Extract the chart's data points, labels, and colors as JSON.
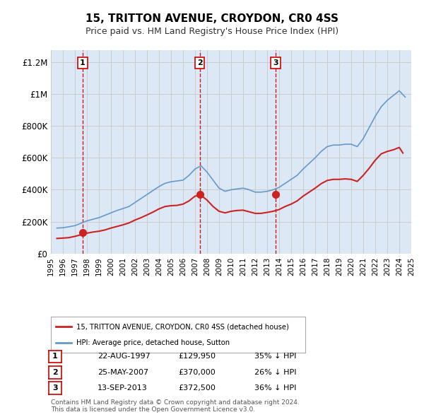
{
  "title": "15, TRITTON AVENUE, CROYDON, CR0 4SS",
  "subtitle": "Price paid vs. HM Land Registry's House Price Index (HPI)",
  "x_start": 1995.5,
  "x_end": 2025.0,
  "y_min": 0,
  "y_max": 1250000,
  "yticks": [
    0,
    200000,
    400000,
    600000,
    800000,
    1000000,
    1200000
  ],
  "ytick_labels": [
    "£0",
    "£200K",
    "£400K",
    "£600K",
    "£800K",
    "£1M",
    "£1.2M"
  ],
  "xtick_years": [
    1995,
    1996,
    1997,
    1998,
    1999,
    2000,
    2001,
    2002,
    2003,
    2004,
    2005,
    2006,
    2007,
    2008,
    2009,
    2010,
    2011,
    2012,
    2013,
    2014,
    2015,
    2016,
    2017,
    2018,
    2019,
    2020,
    2021,
    2022,
    2023,
    2024,
    2025
  ],
  "hpi_color": "#6699cc",
  "price_color": "#cc2222",
  "vline_color": "#cc0000",
  "grid_color": "#cccccc",
  "bg_color": "#f0f4ff",
  "plot_bg": "#dce8f5",
  "legend_label_red": "15, TRITTON AVENUE, CROYDON, CR0 4SS (detached house)",
  "legend_label_blue": "HPI: Average price, detached house, Sutton",
  "sales": [
    {
      "num": 1,
      "date": "22-AUG-1997",
      "year": 1997.64,
      "price": 129950,
      "pct": "35% ↓ HPI"
    },
    {
      "num": 2,
      "date": "25-MAY-2007",
      "year": 2007.4,
      "price": 370000,
      "pct": "26% ↓ HPI"
    },
    {
      "num": 3,
      "date": "13-SEP-2013",
      "year": 2013.71,
      "price": 372500,
      "pct": "36% ↓ HPI"
    }
  ],
  "footer": "Contains HM Land Registry data © Crown copyright and database right 2024.\nThis data is licensed under the Open Government Licence v3.0.",
  "hpi_data": {
    "years": [
      1995.5,
      1996.0,
      1996.5,
      1997.0,
      1997.5,
      1998.0,
      1998.5,
      1999.0,
      1999.5,
      2000.0,
      2000.5,
      2001.0,
      2001.5,
      2002.0,
      2002.5,
      2003.0,
      2003.5,
      2004.0,
      2004.5,
      2005.0,
      2005.5,
      2006.0,
      2006.5,
      2007.0,
      2007.5,
      2008.0,
      2008.5,
      2009.0,
      2009.5,
      2010.0,
      2010.5,
      2011.0,
      2011.5,
      2012.0,
      2012.5,
      2013.0,
      2013.5,
      2014.0,
      2014.5,
      2015.0,
      2015.5,
      2016.0,
      2016.5,
      2017.0,
      2017.5,
      2018.0,
      2018.5,
      2019.0,
      2019.5,
      2020.0,
      2020.5,
      2021.0,
      2021.5,
      2022.0,
      2022.5,
      2023.0,
      2023.5,
      2024.0,
      2024.5
    ],
    "values": [
      160000,
      162000,
      168000,
      175000,
      190000,
      205000,
      215000,
      225000,
      240000,
      255000,
      270000,
      282000,
      295000,
      320000,
      345000,
      370000,
      395000,
      420000,
      440000,
      450000,
      455000,
      460000,
      490000,
      530000,
      550000,
      510000,
      460000,
      410000,
      390000,
      400000,
      405000,
      410000,
      400000,
      385000,
      385000,
      390000,
      400000,
      415000,
      440000,
      465000,
      490000,
      530000,
      565000,
      600000,
      640000,
      670000,
      680000,
      680000,
      685000,
      685000,
      670000,
      720000,
      790000,
      860000,
      920000,
      960000,
      990000,
      1020000,
      980000
    ]
  },
  "price_data": {
    "years": [
      1995.5,
      1996.0,
      1996.5,
      1997.0,
      1997.5,
      1998.0,
      1998.5,
      1999.0,
      1999.5,
      2000.0,
      2000.5,
      2001.0,
      2001.5,
      2002.0,
      2002.5,
      2003.0,
      2003.5,
      2004.0,
      2004.5,
      2005.0,
      2005.5,
      2006.0,
      2006.5,
      2007.0,
      2007.5,
      2008.0,
      2008.5,
      2009.0,
      2009.5,
      2010.0,
      2010.5,
      2011.0,
      2011.5,
      2012.0,
      2012.5,
      2013.0,
      2013.5,
      2014.0,
      2014.5,
      2015.0,
      2015.5,
      2016.0,
      2016.5,
      2017.0,
      2017.5,
      2018.0,
      2018.5,
      2019.0,
      2019.5,
      2020.0,
      2020.5,
      2021.0,
      2021.5,
      2022.0,
      2022.5,
      2023.0,
      2023.5,
      2024.0,
      2024.3
    ],
    "values": [
      95000,
      97000,
      100000,
      108000,
      118000,
      128000,
      135000,
      140000,
      148000,
      160000,
      170000,
      180000,
      192000,
      210000,
      225000,
      242000,
      260000,
      280000,
      295000,
      300000,
      302000,
      310000,
      330000,
      360000,
      365000,
      335000,
      295000,
      265000,
      255000,
      265000,
      270000,
      272000,
      262000,
      252000,
      252000,
      258000,
      265000,
      276000,
      295000,
      310000,
      330000,
      360000,
      385000,
      410000,
      438000,
      458000,
      465000,
      465000,
      468000,
      465000,
      452000,
      490000,
      535000,
      585000,
      625000,
      640000,
      650000,
      665000,
      630000
    ]
  }
}
